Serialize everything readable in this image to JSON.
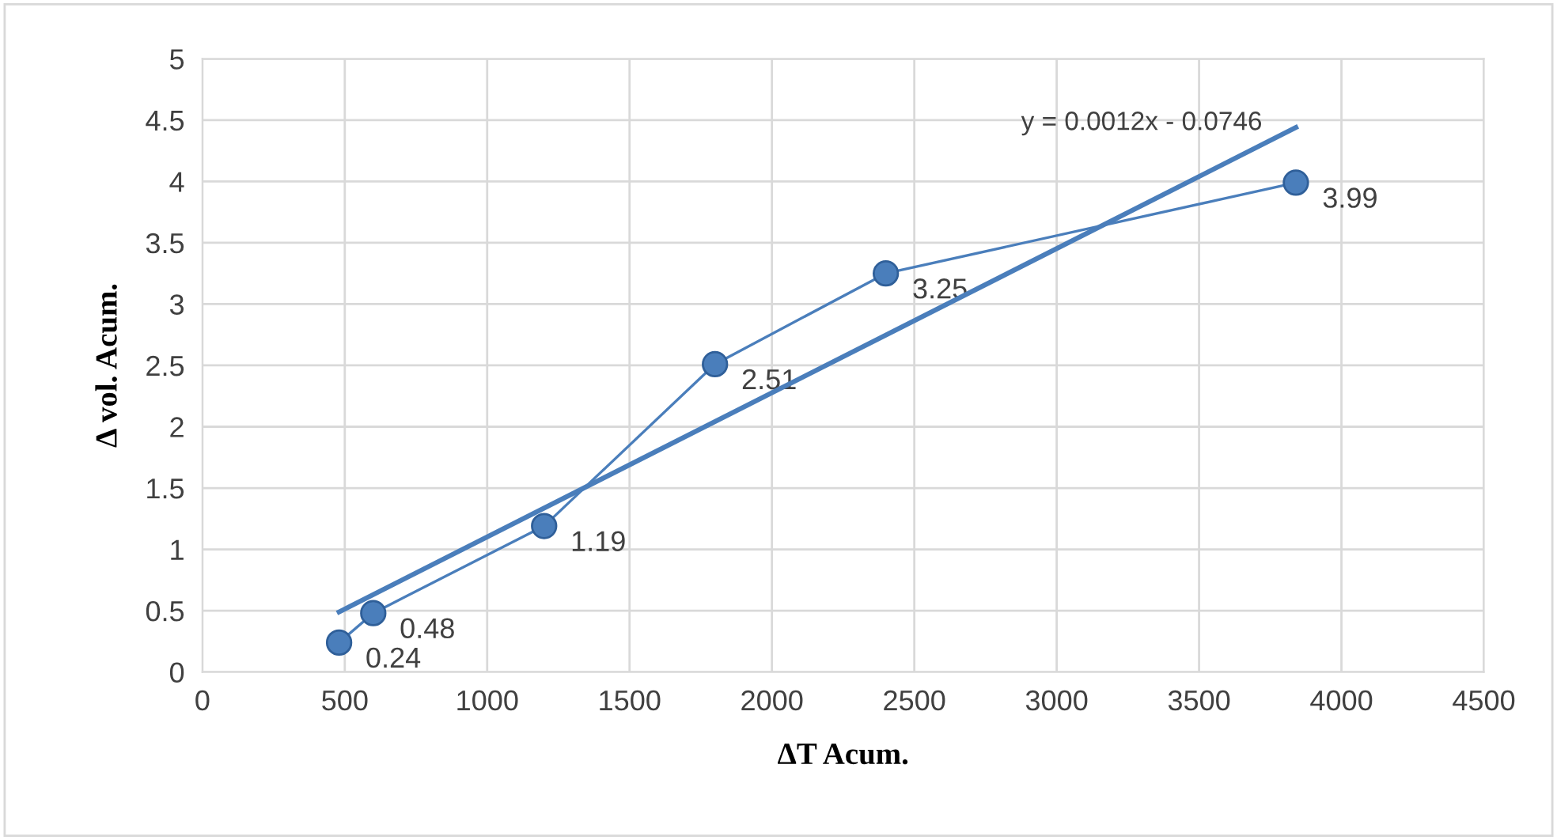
{
  "chart_data": {
    "type": "line",
    "xlabel": "ΔT Acum.",
    "ylabel": "Δ vol. Acum.",
    "series": [
      {
        "color": "#4a7ebb",
        "x": [
          480,
          600,
          1200,
          1800,
          2400,
          3840
        ],
        "values": [
          0.24,
          0.48,
          1.19,
          2.51,
          3.25,
          3.99
        ],
        "marker": "circle",
        "data_labels": true
      },
      {
        "color": "#4a7ebb",
        "x": [
          480,
          3840
        ],
        "values": [
          0.49,
          4.44
        ],
        "marker": "none"
      }
    ],
    "annotations": [
      "y = 0.0012x - 0.0746"
    ],
    "xlim": [
      0,
      4500
    ],
    "xticks": [
      0,
      500,
      1000,
      1500,
      2000,
      2500,
      3000,
      3500,
      4000,
      4500
    ],
    "ylim": [
      0,
      5
    ],
    "yticks": [
      0,
      0.5,
      1,
      1.5,
      2,
      2.5,
      3,
      3.5,
      4,
      4.5,
      5
    ],
    "grid": true,
    "legend": false
  }
}
